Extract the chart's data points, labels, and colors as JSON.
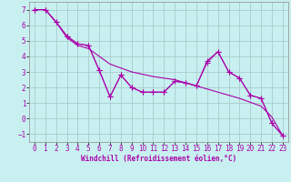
{
  "xlabel": "Windchill (Refroidissement éolien,°C)",
  "bg_color": "#c8f0f0",
  "line_color": "#aa00aa",
  "grid_color": "#aacccc",
  "xlim": [
    -0.5,
    23.5
  ],
  "ylim": [
    -1.5,
    7.5
  ],
  "xticks": [
    0,
    1,
    2,
    3,
    4,
    5,
    6,
    7,
    8,
    9,
    10,
    11,
    12,
    13,
    14,
    15,
    16,
    17,
    18,
    19,
    20,
    21,
    22,
    23
  ],
  "yticks": [
    -1,
    0,
    1,
    2,
    3,
    4,
    5,
    6,
    7
  ],
  "line1_x": [
    0,
    1,
    2,
    3,
    4,
    5,
    6,
    7,
    8,
    9,
    10,
    11,
    12,
    13,
    14,
    15,
    16,
    17,
    18,
    19,
    20,
    21,
    22,
    23
  ],
  "line1_y": [
    7.0,
    7.0,
    6.2,
    5.3,
    4.8,
    4.7,
    3.1,
    1.4,
    2.8,
    2.0,
    1.7,
    1.7,
    1.7,
    2.4,
    2.3,
    2.1,
    3.7,
    4.3,
    3.0,
    2.6,
    1.5,
    1.3,
    -0.3,
    -1.1
  ],
  "line2_x": [
    0,
    1,
    2,
    3,
    4,
    5,
    7,
    9,
    11,
    13,
    15,
    17,
    19,
    21,
    22,
    23
  ],
  "line2_y": [
    7.0,
    7.0,
    6.2,
    5.2,
    4.7,
    4.5,
    3.5,
    3.0,
    2.7,
    2.5,
    2.1,
    1.7,
    1.3,
    0.8,
    0.1,
    -1.1
  ],
  "line3_x": [
    0,
    1,
    2,
    3,
    4,
    5,
    6,
    7,
    8,
    9,
    10,
    11,
    12,
    13,
    14,
    15,
    16,
    17,
    18,
    19,
    20,
    21,
    22,
    23
  ],
  "line3_y": [
    7.0,
    7.0,
    6.2,
    5.3,
    4.8,
    4.7,
    3.1,
    1.4,
    2.8,
    2.0,
    1.7,
    1.7,
    1.7,
    2.4,
    2.3,
    2.1,
    3.6,
    4.3,
    3.0,
    2.6,
    1.5,
    1.3,
    -0.3,
    -1.1
  ]
}
